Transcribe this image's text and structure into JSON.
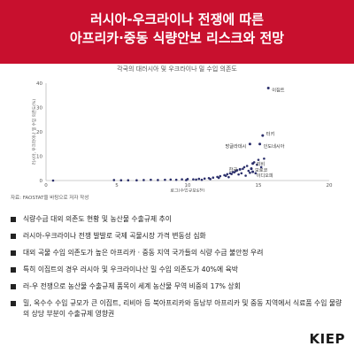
{
  "header": {
    "title_line1": "러시아-우크라이나 전쟁에 따른",
    "title_line2": "아프리카·중동 식량안보 리스크와 전망"
  },
  "chart_data": {
    "type": "scatter",
    "title": "각국의 대러시아 및 우크라이나 밀 수입 의존도",
    "xlabel": "로그(수입규모$천)",
    "ylabel": "러시아, 우크라이나 밀 수입 의존도(%)",
    "xlim": [
      0,
      20
    ],
    "ylim": [
      0,
      40
    ],
    "x_ticks": [
      "0",
      "5",
      "10",
      "15",
      "20"
    ],
    "y_ticks": [
      "0",
      "10",
      "20",
      "30",
      "40"
    ],
    "grid": false,
    "labeled_points": [
      {
        "label": "이집트",
        "x": 15.7,
        "y": 38
      },
      {
        "label": "터키",
        "x": 15.3,
        "y": 18.5
      },
      {
        "label": "방글라데시",
        "x": 14.4,
        "y": 15
      },
      {
        "label": "인도네시아",
        "x": 15.1,
        "y": 15
      },
      {
        "label": "리비",
        "x": 14.6,
        "y": 7
      },
      {
        "label": "한국",
        "x": 13.7,
        "y": 4.6
      },
      {
        "label": "모로코",
        "x": 14.5,
        "y": 4.8
      },
      {
        "label": "이디오피",
        "x": 14.6,
        "y": 3.6
      }
    ],
    "series": [
      {
        "x": [
          0.5,
          4.8,
          5.3,
          5.8,
          6.4,
          6.9,
          7.4,
          7.9,
          8.4,
          8.8,
          9.2,
          9.6,
          10.0,
          10.4,
          10.8,
          11.2,
          11.5,
          11.8,
          12.1,
          12.3,
          12.6,
          12.8,
          13.0,
          13.2,
          13.4,
          13.5,
          13.6,
          13.8,
          13.9,
          14.0,
          14.1,
          14.2,
          14.3,
          14.4,
          14.5,
          14.7,
          14.8,
          14.9,
          15.0,
          15.2,
          15.4,
          11.0,
          11.6,
          12.2,
          12.7,
          13.1,
          13.3,
          9.9,
          10.6,
          12.9
        ],
        "y": [
          0,
          0.2,
          0.1,
          0.1,
          0.1,
          0.2,
          0.3,
          0.2,
          0.3,
          0.4,
          0.3,
          0.5,
          0.6,
          0.5,
          0.7,
          0.8,
          1.0,
          1.2,
          1.5,
          1.8,
          2.2,
          2.6,
          3.0,
          3.5,
          3.9,
          4.2,
          2.5,
          3.0,
          4.8,
          5.5,
          2.0,
          6.0,
          4.0,
          3.2,
          5.0,
          7.5,
          3.0,
          6.5,
          8.5,
          5.5,
          9.0,
          0.3,
          0.6,
          1.1,
          1.9,
          2.7,
          3.4,
          0.2,
          0.4,
          1.4
        ]
      }
    ]
  },
  "source_text": "자료: FAOSTAT을 바탕으로 저자 작성",
  "bullets": [
    "식량수급 대외 의존도 현황 및 농산물 수출규제 추이",
    "러시아-우크라이나 전쟁 발발로 국제 곡물시장 가격 변동성 심화",
    "대외 곡물 수입 의존도가 높은 아프리카 · 중동 지역 국가들의 식량 수급 불안정 우려",
    "특히 이집트의 경우 러시아 및 우크라이나산 밀 수입 의존도가 40%에 육박",
    "러-우 전쟁으로 농산물 수출규제 품목이 세계 농산물 무역 비중의 17% 상회",
    "밀, 옥수수 수입 규모가 큰 이집트, 리비아 등 북아프리카와 동남부 아프리카 및 중동 지역에서 식료품 수입 물량의 상당 부분이 수출규제 영향권"
  ],
  "logo": "KIEP",
  "colors": {
    "header_bg": "#c8102e",
    "marker": "#2b2f6b",
    "logo_dot": "#c8102e"
  }
}
